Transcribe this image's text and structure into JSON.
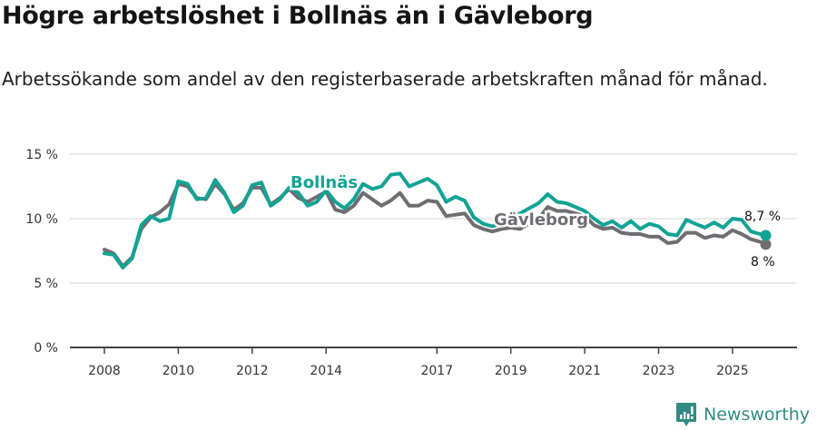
{
  "header": {
    "title": "Högre arbetslöshet i Bollnäs än i Gävleborg",
    "subtitle": "Arbetssökande som andel av den registerbaserade arbetskraften månad för månad."
  },
  "brand": {
    "name": "Newsworthy",
    "icon": "bar-chart-exclamation-icon",
    "color": "#2f8c82"
  },
  "colors": {
    "bollnas": "#12a394",
    "gavleborg": "#6f6d72",
    "grid": "#e0e0e0",
    "axis": "#444444"
  },
  "chart_data": {
    "type": "line",
    "title": "Högre arbetslöshet i Bollnäs än i Gävleborg",
    "subtitle": "Arbetssökande som andel av den registerbaserade arbetskraften månad för månad.",
    "xlabel": "",
    "ylabel": "",
    "ylim": [
      0,
      15
    ],
    "yticks": [
      "0 %",
      "5 %",
      "10 %",
      "15 %"
    ],
    "xticks": [
      "2008",
      "2010",
      "2012",
      "2014",
      "2017",
      "2019",
      "2021",
      "2023",
      "2025"
    ],
    "grid": true,
    "legend": "inline labels",
    "x": [
      2008.0,
      2008.25,
      2008.5,
      2008.75,
      2009.0,
      2009.25,
      2009.5,
      2009.75,
      2010.0,
      2010.25,
      2010.5,
      2010.75,
      2011.0,
      2011.25,
      2011.5,
      2011.75,
      2012.0,
      2012.25,
      2012.5,
      2012.75,
      2013.0,
      2013.25,
      2013.5,
      2013.75,
      2014.0,
      2014.25,
      2014.5,
      2014.75,
      2015.0,
      2015.25,
      2015.5,
      2015.75,
      2016.0,
      2016.25,
      2016.5,
      2016.75,
      2017.0,
      2017.25,
      2017.5,
      2017.75,
      2018.0,
      2018.25,
      2018.5,
      2018.75,
      2019.0,
      2019.25,
      2019.5,
      2019.75,
      2020.0,
      2020.25,
      2020.5,
      2020.75,
      2021.0,
      2021.25,
      2021.5,
      2021.75,
      2022.0,
      2022.25,
      2022.5,
      2022.75,
      2023.0,
      2023.25,
      2023.5,
      2023.75,
      2024.0,
      2024.25,
      2024.5,
      2024.75,
      2025.0,
      2025.25,
      2025.5,
      2025.75,
      2025.9
    ],
    "series": [
      {
        "name": "Bollnäs",
        "values": [
          7.3,
          7.2,
          6.2,
          6.9,
          9.5,
          10.2,
          9.8,
          10.0,
          12.9,
          12.7,
          11.5,
          11.6,
          13.0,
          12.0,
          10.5,
          11.0,
          12.6,
          12.8,
          11.0,
          11.5,
          12.4,
          12.0,
          11.0,
          11.3,
          12.2,
          11.3,
          10.8,
          11.5,
          12.7,
          12.3,
          12.5,
          13.4,
          13.5,
          12.5,
          12.8,
          13.1,
          12.6,
          11.3,
          11.7,
          11.4,
          10.1,
          9.6,
          9.4,
          9.6,
          10.2,
          10.4,
          10.8,
          11.2,
          11.9,
          11.3,
          11.2,
          10.9,
          10.6,
          10.0,
          9.5,
          9.8,
          9.3,
          9.8,
          9.2,
          9.6,
          9.4,
          8.8,
          8.7,
          9.9,
          9.6,
          9.3,
          9.7,
          9.3,
          10.0,
          9.9,
          9.0,
          8.8,
          8.7
        ]
      },
      {
        "name": "Gävleborg",
        "values": [
          7.6,
          7.3,
          6.3,
          7.0,
          9.2,
          10.1,
          10.5,
          11.1,
          12.7,
          12.5,
          11.6,
          11.5,
          12.7,
          11.9,
          10.7,
          11.2,
          12.4,
          12.4,
          11.1,
          11.6,
          12.3,
          11.6,
          11.3,
          11.7,
          12.1,
          10.7,
          10.5,
          11.0,
          12.0,
          11.5,
          11.0,
          11.4,
          12.0,
          11.0,
          11.0,
          11.4,
          11.3,
          10.2,
          10.3,
          10.4,
          9.5,
          9.2,
          9.0,
          9.2,
          9.3,
          9.2,
          9.6,
          10.0,
          10.9,
          10.6,
          10.6,
          10.4,
          10.2,
          9.5,
          9.2,
          9.3,
          8.9,
          8.8,
          8.8,
          8.6,
          8.6,
          8.1,
          8.2,
          8.9,
          8.9,
          8.5,
          8.7,
          8.6,
          9.1,
          8.8,
          8.4,
          8.2,
          8.0
        ]
      }
    ],
    "annotations": [
      {
        "text": "Bollnäs",
        "series": "Bollnäs",
        "x": 2013.3
      },
      {
        "text": "Gävleborg",
        "series": "Gävleborg",
        "x": 2019.5
      },
      {
        "text": "8,7 %",
        "series": "Bollnäs",
        "position": "end-above"
      },
      {
        "text": "8 %",
        "series": "Gävleborg",
        "position": "end-below"
      }
    ]
  }
}
